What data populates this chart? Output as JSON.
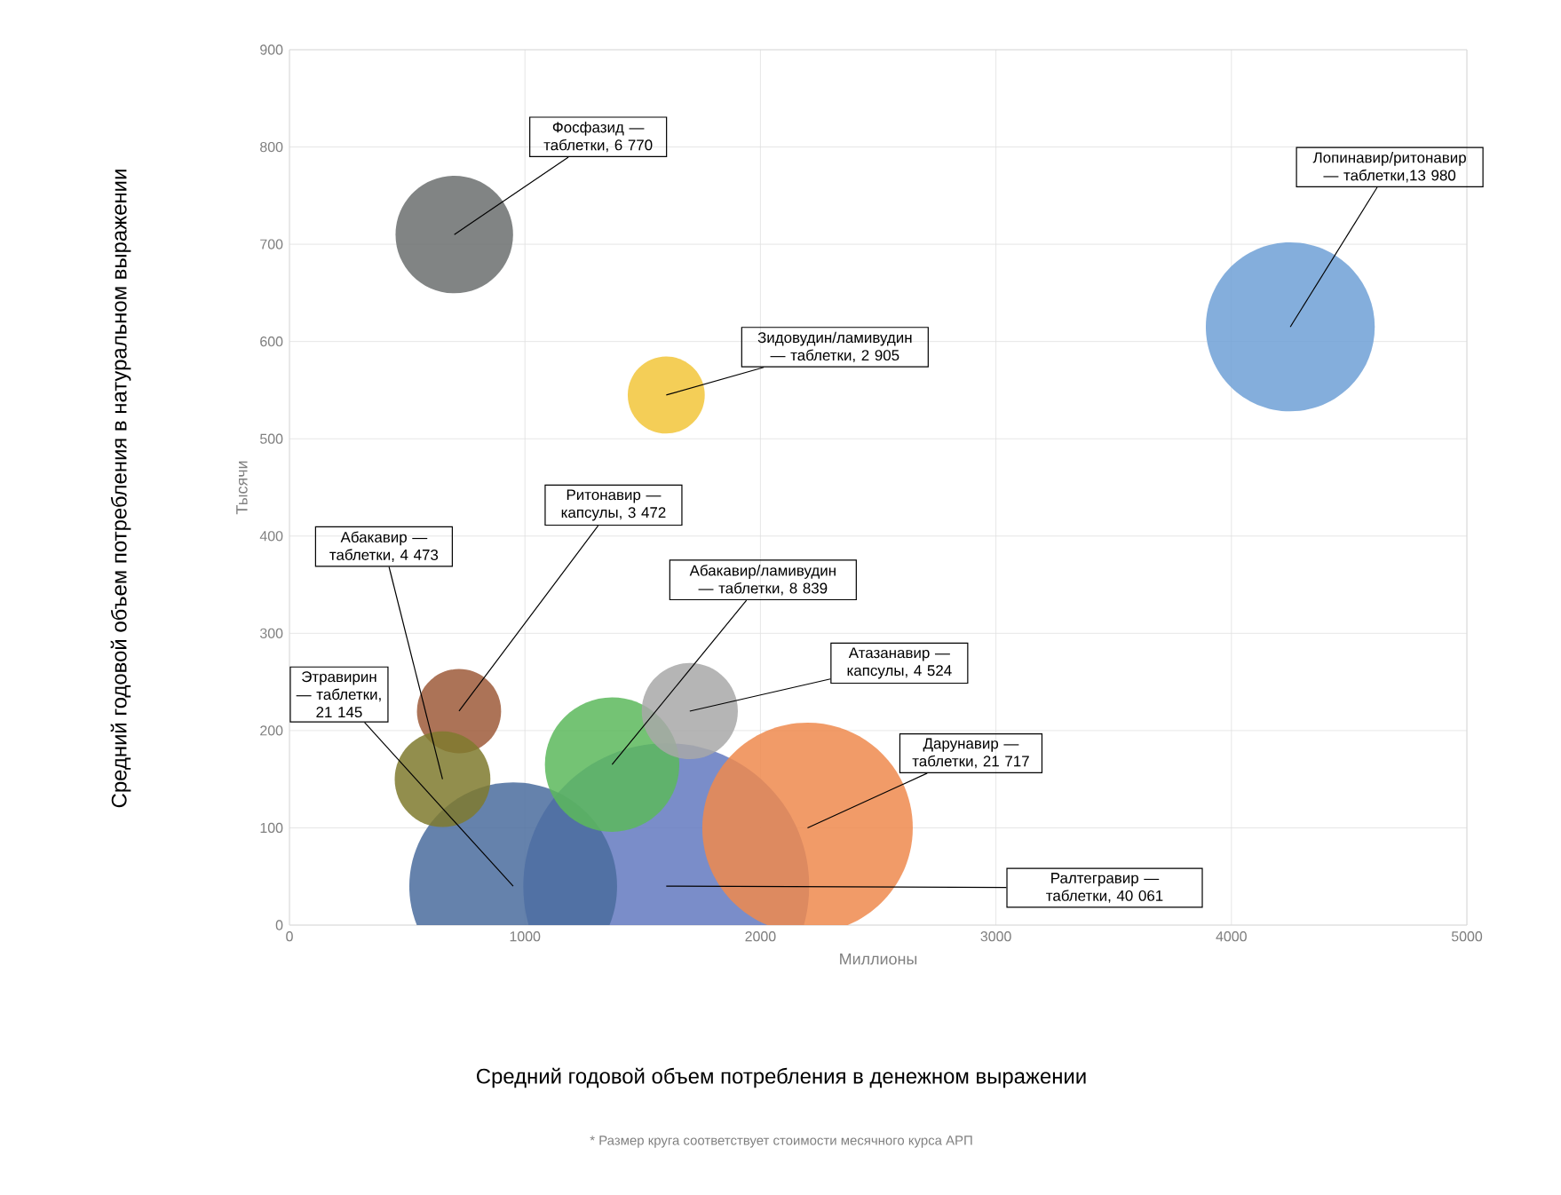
{
  "chart_data": {
    "type": "bubble",
    "xlabel": "Миллионы",
    "ylabel": "Тысячи",
    "x": [
      700,
      4250,
      1600,
      1600,
      2200,
      950,
      1370,
      1700,
      720,
      650
    ],
    "values": [
      710,
      615,
      545,
      40,
      100,
      40,
      165,
      220,
      220,
      150
    ],
    "sizes": [
      0.169,
      0.349,
      0.0725,
      1,
      0.542,
      0.528,
      0.221,
      0.113,
      0.0867,
      0.112
    ],
    "colors": [
      "#6b6e6e",
      "#6fa0d6",
      "#f2c53a",
      "#6379bf",
      "#ee8a4e",
      "#4a6c9e",
      "#5cb85c",
      "#a8a8a8",
      "#9e5a3a",
      "#7f7a2e"
    ],
    "xlim": [
      0,
      5000
    ],
    "ylim": [
      0,
      900
    ],
    "xticks": [
      0,
      1000,
      2000,
      3000,
      4000,
      5000
    ],
    "yticks": [
      0,
      100,
      200,
      300,
      400,
      500,
      600,
      700,
      800,
      900
    ],
    "grid": true,
    "annotations": [
      {
        "text": "Фосфазид — таблетки, 6 770",
        "x": 700,
        "y": 710
      },
      {
        "text": "Лопинавир/ритонавир — таблетки,13 980",
        "x": 4250,
        "y": 615
      },
      {
        "text": "Зидовудин/ламивудин — таблетки, 2 905",
        "x": 1600,
        "y": 545
      },
      "Ралтегравир — таблетки, 40 061",
      {
        "text": "Дарунавир — таблетки, 21 717",
        "x": 2200,
        "y": 100
      },
      {
        "text": "Этравирин — таблетки, 21 145",
        "x": 950,
        "y": 40
      },
      {
        "text": "Абакавир/ламивудин — таблетки, 8 839",
        "x": 1370,
        "y": 165
      },
      {
        "text": "Атазанавир — капсулы, 4 524",
        "x": 1700,
        "y": 220
      },
      {
        "text": "Ритонавир — капсулы, 3 472",
        "x": 720,
        "y": 220
      },
      {
        "text": "Абакавир — таблетки, 4 473",
        "x": 650,
        "y": 150
      },
      "Средний годовой объем потребления в денежном выражении",
      "Средний годовой объем потребления в натуральном выражении",
      "* Размер круга соответствует стоимости месячного курса АРП"
    ]
  }
}
